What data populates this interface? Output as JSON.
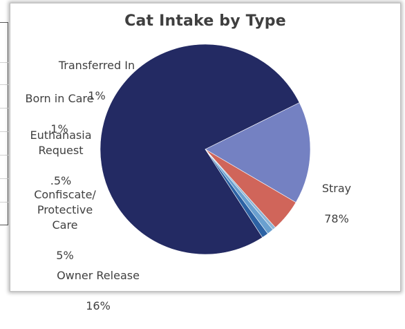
{
  "chart_data": {
    "type": "pie",
    "title": "Cat Intake by Type",
    "slices": [
      {
        "name": "Stray",
        "value": 78,
        "label": "78%",
        "color": "#232a63"
      },
      {
        "name": "Owner Release",
        "value": 16,
        "label": "16%",
        "color": "#7481c2"
      },
      {
        "name": "Confiscate/ Protective Care",
        "value": 5,
        "label": "5%",
        "color": "#d0655a"
      },
      {
        "name": "Euthanasia Request",
        "value": 0.5,
        "label": ".5%",
        "color": "#8eb6d6"
      },
      {
        "name": "Born in Care",
        "value": 1,
        "label": "1%",
        "color": "#6aa0cf"
      },
      {
        "name": "Transferred In",
        "value": 1,
        "label": "1%",
        "color": "#2c62a4"
      }
    ],
    "labels": {
      "stray": {
        "name": "Stray",
        "pct": "78%"
      },
      "owner_release": {
        "name": "Owner Release",
        "pct": "16%"
      },
      "confiscate": {
        "name": "Confiscate/\nProtective\nCare",
        "pct": "5%"
      },
      "euthanasia": {
        "name": "Euthanasia\nRequest",
        "pct": ".5%"
      },
      "born_in_care": {
        "name": "Born in Care",
        "pct": "1%"
      },
      "transferred_in": {
        "name": "Transferred In",
        "pct": "1%"
      }
    }
  }
}
